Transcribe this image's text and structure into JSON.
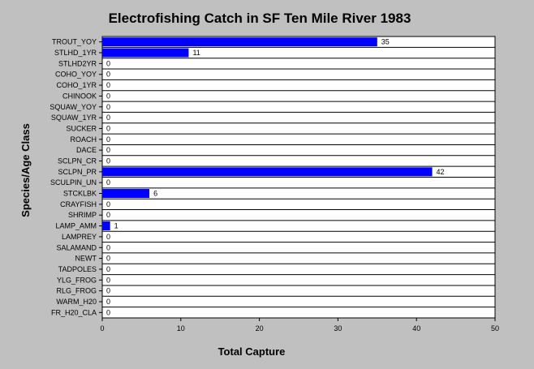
{
  "chart_data": {
    "type": "bar",
    "orientation": "horizontal",
    "title": "Electrofishing Catch in SF Ten Mile River 1983",
    "xlabel": "Total Capture",
    "ylabel": "Species/Age Class",
    "xlim": [
      0,
      50
    ],
    "xticks": [
      0,
      10,
      20,
      30,
      40,
      50
    ],
    "grid": "horizontal",
    "legend": "none",
    "categories": [
      "TROUT_YOY",
      "STLHD_1YR",
      "STLHD2YR",
      "COHO_YOY",
      "COHO_1YR",
      "CHINOOK",
      "SQUAW_YOY",
      "SQUAW_1YR",
      "SUCKER",
      "ROACH",
      "DACE",
      "SCLPN_CR",
      "SCLPN_PR",
      "SCULPIN_UN",
      "STCKLBK",
      "CRAYFISH",
      "SHRIMP",
      "LAMP_AMM",
      "LAMPREY",
      "SALAMAND",
      "NEWT",
      "TADPOLES",
      "YLG_FROG",
      "RLG_FROG",
      "WARM_H20",
      "FR_H20_CLA"
    ],
    "values": [
      35,
      11,
      0,
      0,
      0,
      0,
      0,
      0,
      0,
      0,
      0,
      0,
      42,
      0,
      6,
      0,
      0,
      1,
      0,
      0,
      0,
      0,
      0,
      0,
      0,
      0
    ],
    "colors": {
      "bar": "#0000ff",
      "plot_bg": "#ffffff",
      "page_bg": "#c0c0c0",
      "grid": "#000000"
    }
  }
}
